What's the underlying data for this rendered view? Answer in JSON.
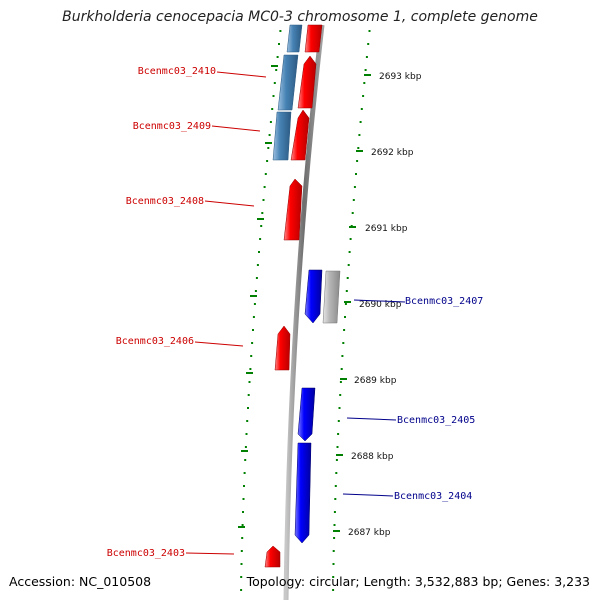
{
  "title": "Burkholderia cenocepacia MC0-3 chromosome 1, complete genome",
  "accession": "Accession: NC_010508",
  "topology": "Topology: circular; Length: 3,532,883 bp; Genes: 3,233",
  "ticks": [
    "2693 kbp",
    "2692 kbp",
    "2691 kbp",
    "2690 kbp",
    "2689 kbp",
    "2688 kbp",
    "2687 kbp"
  ],
  "genes_left": [
    "Bcenmc03_2410",
    "Bcenmc03_2409",
    "Bcenmc03_2408",
    "Bcenmc03_2406",
    "Bcenmc03_2403"
  ],
  "genes_right": [
    "Bcenmc03_2407",
    "Bcenmc03_2405",
    "Bcenmc03_2404"
  ],
  "colors": {
    "forward": "#ff0000",
    "reverse": "#0000ff",
    "highlight": "#4682b4",
    "pseudo": "#b0b0b0",
    "ticks": "#008000",
    "label_left": "#cc0000",
    "label_right": "#00008b"
  }
}
